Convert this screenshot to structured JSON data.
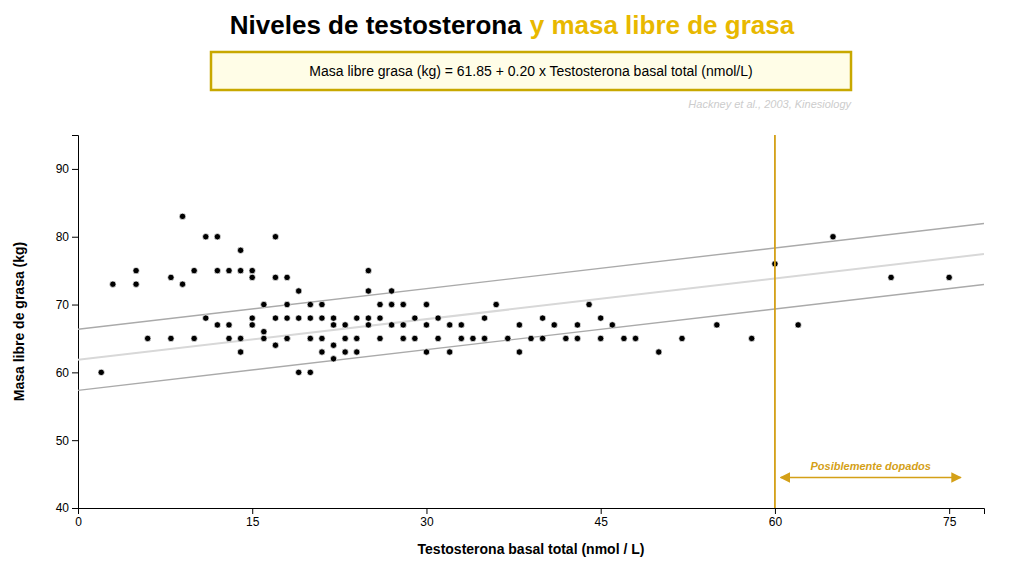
{
  "chart_data": {
    "type": "scatter",
    "title": [
      {
        "text": "Niveles de testosterona",
        "color": "black"
      },
      {
        "text": "y masa libre de grasa",
        "color": "#e8b800"
      }
    ],
    "x_label": "Testosterona basal total (nmol / L)",
    "y_label": "Masa libre de grasa (kg)",
    "xlim": [
      0,
      78
    ],
    "ylim": [
      40,
      95
    ],
    "xticks": [
      0,
      15,
      30,
      45,
      60,
      75
    ],
    "yticks": [
      40,
      50,
      60,
      70,
      80,
      90
    ],
    "grid": false,
    "series": [
      {
        "type": "scatter",
        "marker": "circle",
        "color": "black",
        "x": [
          2,
          3,
          5,
          5,
          6,
          8,
          8,
          9,
          9,
          10,
          10,
          11,
          11,
          12,
          12,
          12,
          13,
          13,
          13,
          14,
          14,
          14,
          14,
          15,
          15,
          15,
          15,
          16,
          16,
          16,
          17,
          17,
          17,
          17,
          18,
          18,
          18,
          18,
          18,
          19,
          19,
          19,
          20,
          20,
          20,
          20,
          21,
          21,
          21,
          21,
          22,
          22,
          22,
          22,
          23,
          23,
          23,
          24,
          24,
          24,
          25,
          25,
          25,
          25,
          26,
          26,
          26,
          27,
          27,
          27,
          28,
          28,
          28,
          29,
          29,
          30,
          30,
          30,
          31,
          31,
          32,
          32,
          33,
          33,
          34,
          35,
          35,
          36,
          37,
          38,
          38,
          39,
          40,
          40,
          41,
          42,
          43,
          43,
          44,
          45,
          45,
          46,
          47,
          48,
          50,
          52,
          55,
          58,
          60,
          62,
          65,
          70,
          75
        ],
        "values": [
          60,
          73,
          75,
          73,
          65,
          65,
          74,
          73,
          83,
          65,
          75,
          68,
          80,
          67,
          75,
          80,
          75,
          65,
          67,
          63,
          75,
          65,
          78,
          67,
          68,
          75,
          74,
          65,
          66,
          70,
          64,
          68,
          74,
          80,
          65,
          70,
          74,
          68,
          65,
          60,
          68,
          72,
          65,
          68,
          60,
          70,
          63,
          65,
          68,
          70,
          62,
          64,
          67,
          68,
          65,
          67,
          63,
          65,
          63,
          68,
          67,
          68,
          72,
          75,
          65,
          70,
          68,
          67,
          70,
          72,
          65,
          67,
          70,
          65,
          68,
          63,
          67,
          70,
          65,
          68,
          63,
          67,
          65,
          67,
          65,
          65,
          68,
          70,
          65,
          63,
          67,
          65,
          68,
          65,
          67,
          65,
          65,
          67,
          70,
          65,
          68,
          67,
          65,
          65,
          63,
          65,
          67,
          65,
          76,
          67,
          80,
          74,
          74
        ]
      },
      {
        "type": "line",
        "line_style": "solid",
        "color": "#aaaaaa",
        "x": [
          0,
          78
        ],
        "values": [
          66.35,
          81.95
        ]
      },
      {
        "type": "line",
        "line_style": "solid",
        "color": "#aaaaaa",
        "x": [
          0,
          78
        ],
        "values": [
          57.35,
          72.95
        ]
      },
      {
        "type": "line",
        "line_style": "solid",
        "color": "#d8d8d8",
        "x": [
          0,
          78
        ],
        "values": [
          61.85,
          77.45
        ]
      }
    ],
    "annotations": [
      {
        "type": "vline",
        "x": 60,
        "color": "#d4a017"
      },
      {
        "type": "arrow",
        "x": [
          60.5,
          76
        ],
        "y": 44.5,
        "text": "Posiblemente dopados",
        "color": "#d4a017"
      },
      {
        "type": "box",
        "text": "Masa libre grasa (kg) = 61.85 + 0.20 x Testosterona basal total (nmol/L)",
        "colors": [
          "#fffde7",
          "#c8a800"
        ]
      },
      {
        "type": "note",
        "text": "Hackney et al., 2003, Kinesiology",
        "color": "#cccccc"
      }
    ]
  }
}
